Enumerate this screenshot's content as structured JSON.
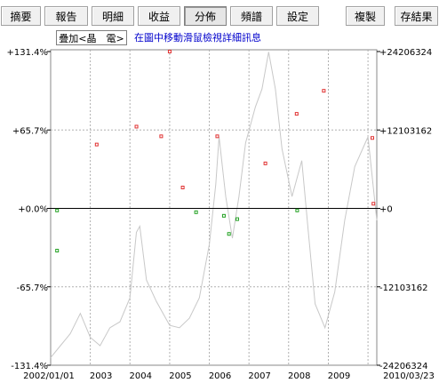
{
  "tabs": [
    {
      "label": "摘要",
      "active": false
    },
    {
      "label": "報告",
      "active": false
    },
    {
      "label": "明細",
      "active": false
    },
    {
      "label": "收益",
      "active": false
    },
    {
      "label": "分佈",
      "active": true
    },
    {
      "label": "頻譜",
      "active": false
    },
    {
      "label": "設定",
      "active": false
    }
  ],
  "actions": {
    "copy": "複製",
    "save": "存結果"
  },
  "toolbar": {
    "overlay_button": "疊加<晶　電>",
    "hint": "在圖中移動滑鼠檢視詳細訊息"
  },
  "chart_data": {
    "type": "scatter",
    "title": "",
    "left_axis": {
      "ticks": [
        "+131.4%",
        "+65.7%",
        "+0.0%",
        "-65.7%",
        "-131.4%"
      ],
      "values": [
        131.4,
        65.7,
        0,
        -65.7,
        -131.4
      ],
      "unit": "%"
    },
    "right_axis": {
      "ticks": [
        "+24206324",
        "+12103162",
        "+0",
        "-12103162",
        "-24206324"
      ],
      "values": [
        24206324,
        12103162,
        0,
        -12103162,
        -24206324
      ]
    },
    "x_axis": {
      "ticks": [
        "2002/01/01",
        "2003",
        "2004",
        "2005",
        "2006",
        "2007",
        "2008",
        "2009",
        "2010/03/23"
      ],
      "min": "2002-01-01",
      "max": "2010-03-23"
    },
    "grid": true,
    "colors": {
      "gain": "#e03030",
      "loss": "#20a020",
      "price": "#c8c8c8",
      "zero_line": "#000000",
      "grid": "#b0b0b0"
    },
    "series": [
      {
        "color": "gain",
        "points": [
          {
            "x": "2003-03-01",
            "y": 53.5
          },
          {
            "x": "2004-03-01",
            "y": 68.5
          },
          {
            "x": "2004-10-15",
            "y": 60.4
          },
          {
            "x": "2005-01-01",
            "y": 131.4
          },
          {
            "x": "2005-05-01",
            "y": 17.5
          },
          {
            "x": "2006-03-15",
            "y": 60.4
          },
          {
            "x": "2007-06-01",
            "y": 37.7
          },
          {
            "x": "2008-03-15",
            "y": 79.2
          },
          {
            "x": "2008-11-20",
            "y": 98.5
          },
          {
            "x": "2010-02-10",
            "y": 59.0
          },
          {
            "x": "2010-02-20",
            "y": 3.9
          }
        ]
      },
      {
        "color": "loss",
        "points": [
          {
            "x": "2002-03-01",
            "y": -1.7
          },
          {
            "x": "2002-03-01",
            "y": -35.4
          },
          {
            "x": "2005-09-01",
            "y": -3.2
          },
          {
            "x": "2006-05-15",
            "y": -6.2
          },
          {
            "x": "2006-07-01",
            "y": -21.4
          },
          {
            "x": "2006-09-15",
            "y": -9.0
          },
          {
            "x": "2008-03-20",
            "y": -1.7
          }
        ]
      }
    ],
    "price_series": [
      {
        "x": "2002-01-01",
        "y": -125
      },
      {
        "x": "2002-04-01",
        "y": -115
      },
      {
        "x": "2002-07-01",
        "y": -105
      },
      {
        "x": "2002-10-01",
        "y": -88
      },
      {
        "x": "2003-01-01",
        "y": -108
      },
      {
        "x": "2003-04-01",
        "y": -115
      },
      {
        "x": "2003-07-01",
        "y": -100
      },
      {
        "x": "2003-10-01",
        "y": -95
      },
      {
        "x": "2004-01-01",
        "y": -75
      },
      {
        "x": "2004-03-01",
        "y": -20
      },
      {
        "x": "2004-04-01",
        "y": -15
      },
      {
        "x": "2004-06-01",
        "y": -60
      },
      {
        "x": "2004-09-01",
        "y": -78
      },
      {
        "x": "2005-01-01",
        "y": -98
      },
      {
        "x": "2005-04-01",
        "y": -100
      },
      {
        "x": "2005-07-01",
        "y": -92
      },
      {
        "x": "2005-10-01",
        "y": -75
      },
      {
        "x": "2006-01-01",
        "y": -30
      },
      {
        "x": "2006-03-01",
        "y": 20
      },
      {
        "x": "2006-04-01",
        "y": 60
      },
      {
        "x": "2006-06-01",
        "y": 10
      },
      {
        "x": "2006-08-01",
        "y": -25
      },
      {
        "x": "2006-10-01",
        "y": 10
      },
      {
        "x": "2006-12-01",
        "y": 55
      },
      {
        "x": "2007-03-01",
        "y": 85
      },
      {
        "x": "2007-05-01",
        "y": 100
      },
      {
        "x": "2007-07-01",
        "y": 131
      },
      {
        "x": "2007-09-01",
        "y": 100
      },
      {
        "x": "2007-11-01",
        "y": 50
      },
      {
        "x": "2008-02-01",
        "y": 10
      },
      {
        "x": "2008-05-01",
        "y": 40
      },
      {
        "x": "2008-07-01",
        "y": -20
      },
      {
        "x": "2008-09-01",
        "y": -80
      },
      {
        "x": "2008-12-01",
        "y": -100
      },
      {
        "x": "2009-03-01",
        "y": -70
      },
      {
        "x": "2009-06-01",
        "y": -10
      },
      {
        "x": "2009-09-01",
        "y": 35
      },
      {
        "x": "2010-01-01",
        "y": 60
      },
      {
        "x": "2010-03-23",
        "y": -10
      }
    ]
  }
}
